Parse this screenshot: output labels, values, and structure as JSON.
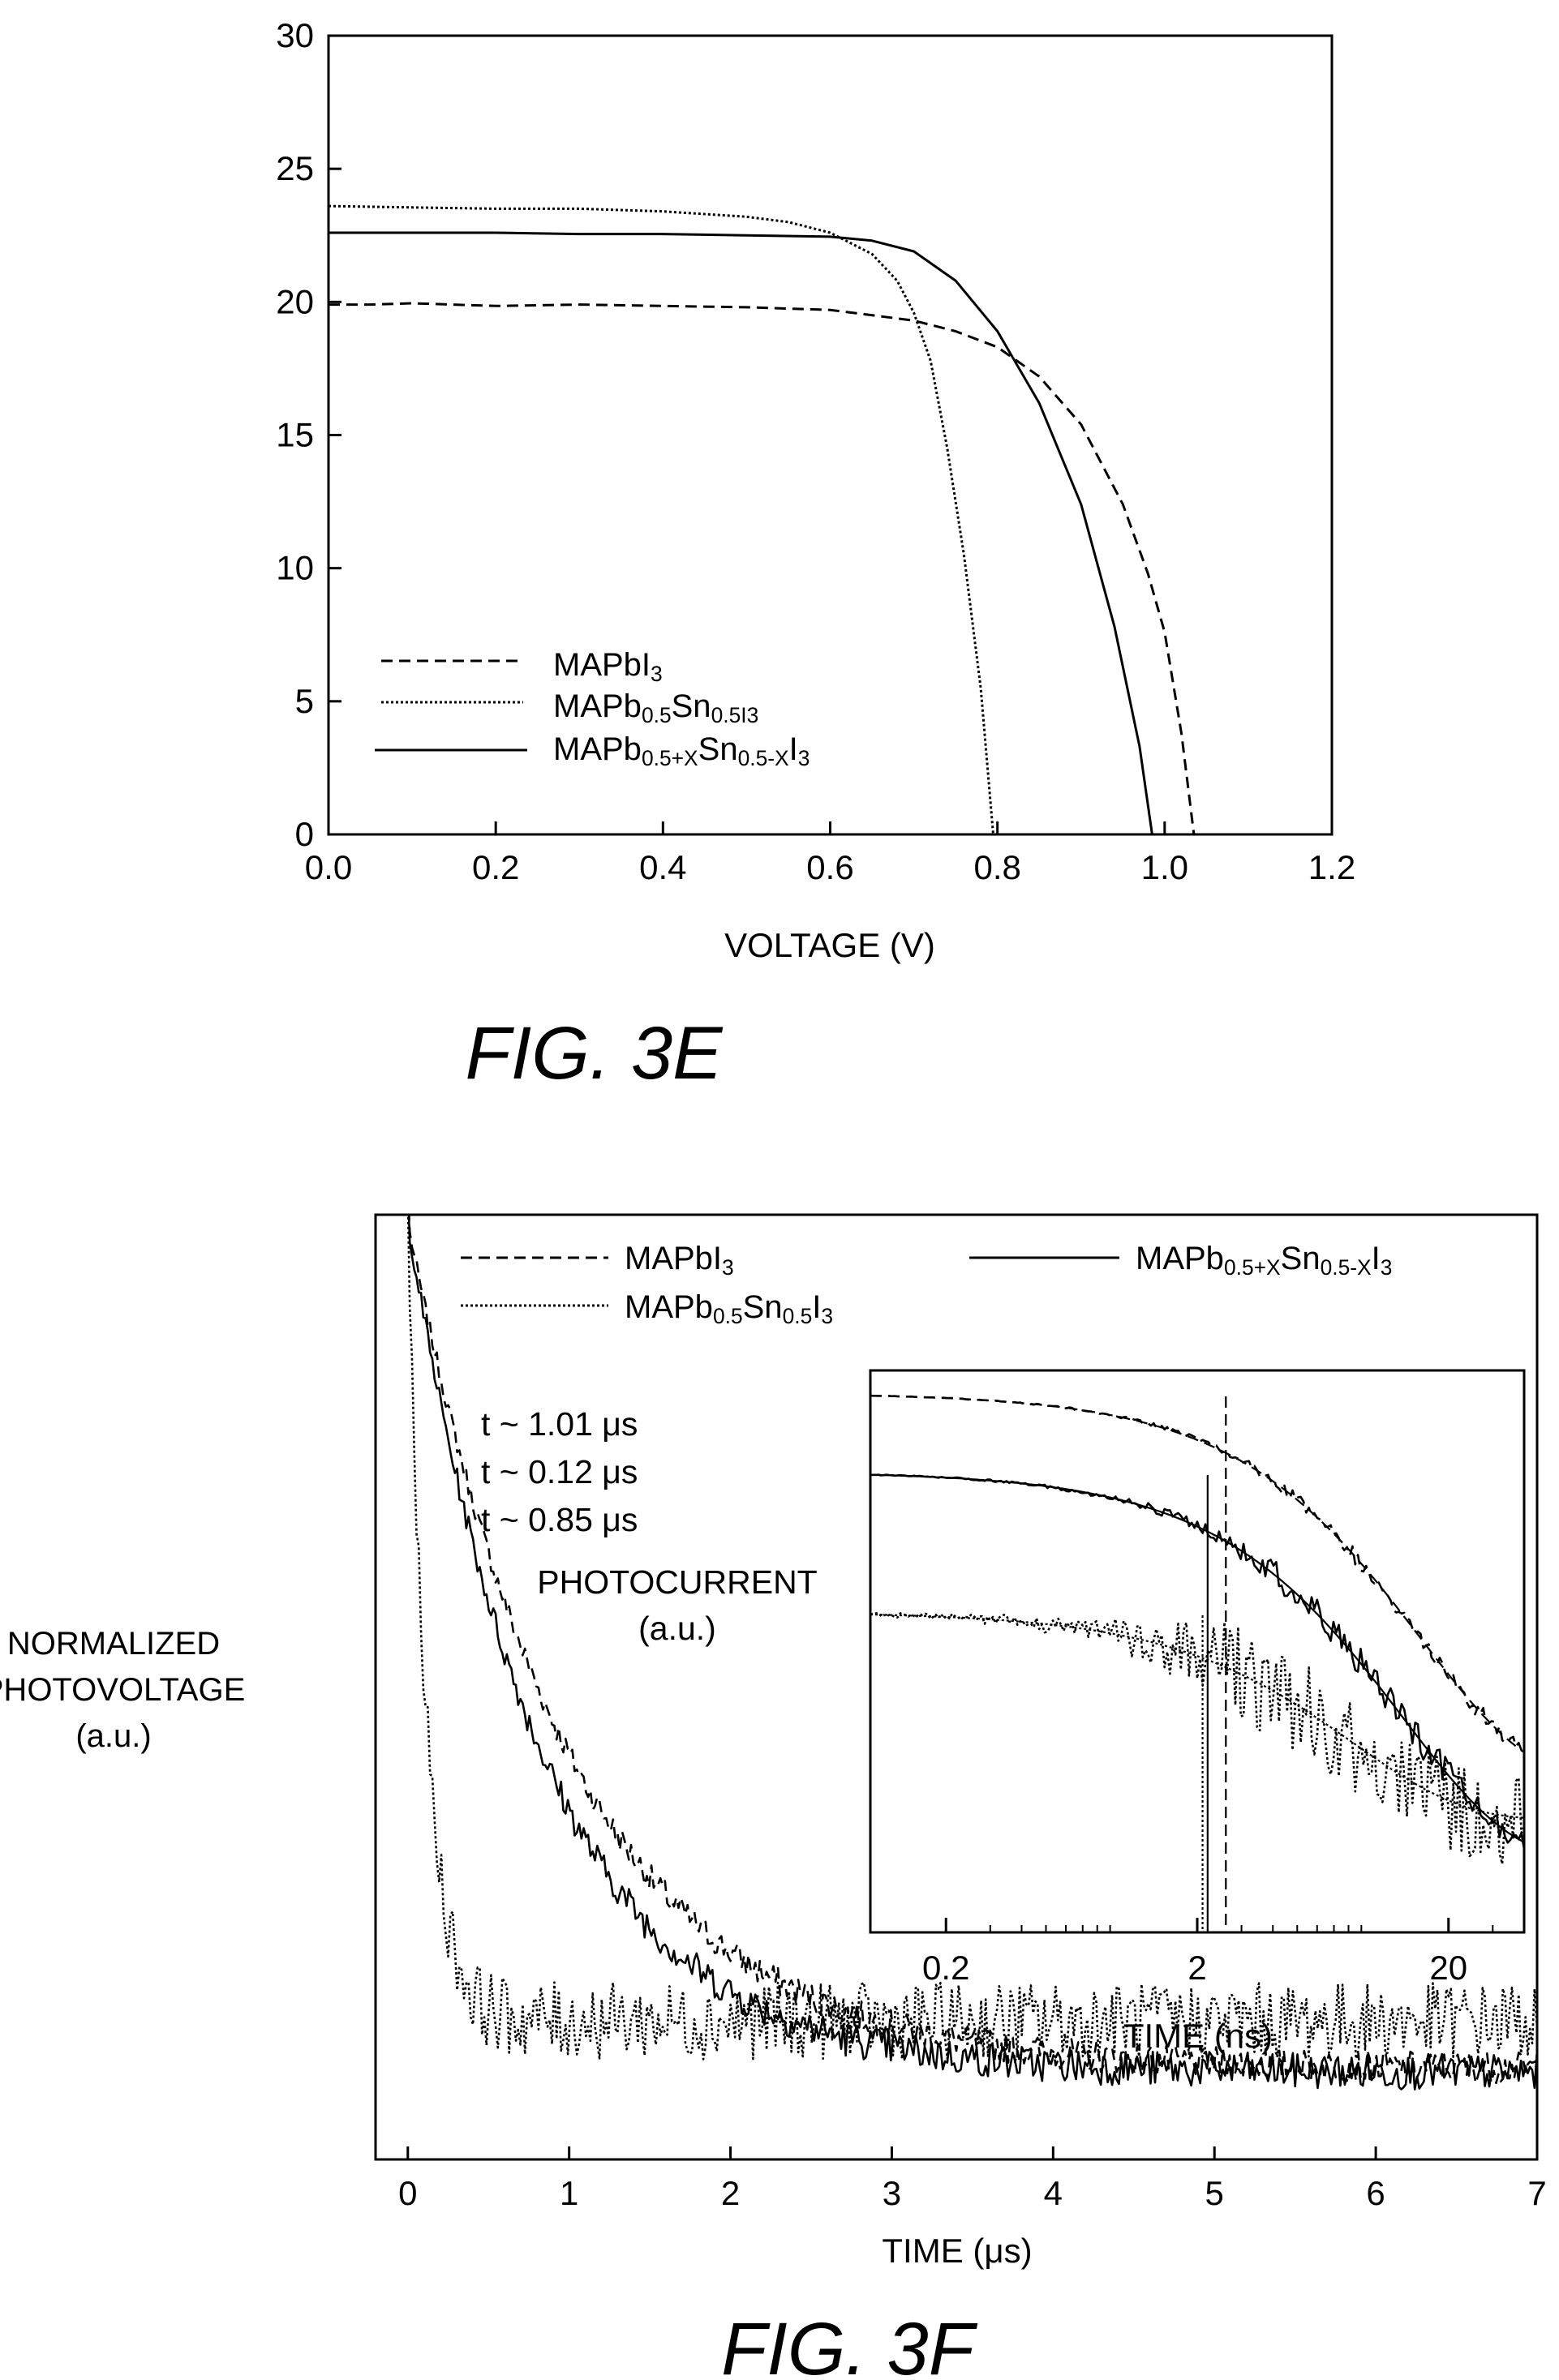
{
  "figures": {
    "fig3e": {
      "caption": "FIG. 3E",
      "xlabel": "VOLTAGE (V)",
      "ylabel": "",
      "legend": [
        {
          "base": "MAPbI",
          "parts": [
            {
              "t": "MAPbI",
              "s": ""
            },
            {
              "t": "3",
              "s": "sub"
            }
          ],
          "dash": "dashed"
        },
        {
          "base": "MAPb0.5Sn0.5I3",
          "parts": [
            {
              "t": "MAPb",
              "s": ""
            },
            {
              "t": "0.5",
              "s": "sub"
            },
            {
              "t": "Sn",
              "s": ""
            },
            {
              "t": "0.5I3",
              "s": "sub"
            }
          ],
          "dash": "dotted"
        },
        {
          "base": "MAPb0.5+XSn0.5-XI3",
          "parts": [
            {
              "t": "MAPb",
              "s": ""
            },
            {
              "t": "0.5+X",
              "s": "sub"
            },
            {
              "t": "Sn",
              "s": ""
            },
            {
              "t": "0.5-X",
              "s": "sub"
            },
            {
              "t": "I",
              "s": ""
            },
            {
              "t": "3",
              "s": "sub"
            }
          ],
          "dash": "solid"
        }
      ]
    },
    "fig3f": {
      "caption": "FIG. 3F",
      "xlabel": "TIME (μs)",
      "ylabel_lines": [
        "NORMALIZED",
        "PHOTOVOLTAGE",
        "(a.u.)"
      ],
      "legend": [
        {
          "base": "MAPbI3",
          "parts": [
            {
              "t": "MAPbI",
              "s": ""
            },
            {
              "t": "3",
              "s": "sub"
            }
          ],
          "dash": "dashed"
        },
        {
          "base": "MAPb0.5+XSn0.5-XI3",
          "parts": [
            {
              "t": "MAPb",
              "s": ""
            },
            {
              "t": "0.5+X",
              "s": "sub"
            },
            {
              "t": "Sn",
              "s": ""
            },
            {
              "t": "0.5-X",
              "s": "sub"
            },
            {
              "t": "I",
              "s": ""
            },
            {
              "t": "3",
              "s": "sub"
            }
          ],
          "dash": "solid"
        },
        {
          "base": "MAPb0.5Sn0.5I3",
          "parts": [
            {
              "t": "MAPb",
              "s": ""
            },
            {
              "t": "0.5",
              "s": "sub"
            },
            {
              "t": "Sn",
              "s": ""
            },
            {
              "t": "0.5",
              "s": "sub"
            },
            {
              "t": "I",
              "s": ""
            },
            {
              "t": "3",
              "s": "sub"
            }
          ],
          "dash": "dotted"
        }
      ],
      "annotations": [
        "t ~ 1.01 μs",
        "t ~ 0.12 μs",
        "t ~ 0.85 μs"
      ],
      "inset_label_lines": [
        "PHOTOCURRENT",
        "(a.u.)"
      ],
      "inset_xlabel": "TIME (ns)"
    }
  },
  "chart_data": [
    {
      "id": "fig3e",
      "type": "line",
      "xlim": [
        0.0,
        1.2
      ],
      "ylim": [
        0,
        30
      ],
      "x_ticks": [
        "0.0",
        "0.2",
        "0.4",
        "0.6",
        "0.8",
        "1.0",
        "1.2"
      ],
      "y_ticks": [
        "0",
        "5",
        "10",
        "15",
        "20",
        "25",
        "30"
      ],
      "series": [
        {
          "name": "MAPbI3",
          "dash": "dashed",
          "points": [
            [
              0.0,
              19.9
            ],
            [
              0.05,
              19.9
            ],
            [
              0.1,
              19.95
            ],
            [
              0.2,
              19.85
            ],
            [
              0.3,
              19.9
            ],
            [
              0.4,
              19.85
            ],
            [
              0.5,
              19.8
            ],
            [
              0.6,
              19.7
            ],
            [
              0.7,
              19.3
            ],
            [
              0.75,
              18.9
            ],
            [
              0.8,
              18.3
            ],
            [
              0.85,
              17.2
            ],
            [
              0.9,
              15.4
            ],
            [
              0.95,
              12.4
            ],
            [
              0.98,
              9.8
            ],
            [
              1.0,
              7.6
            ],
            [
              1.02,
              3.8
            ],
            [
              1.035,
              0
            ]
          ]
        },
        {
          "name": "MAPb0.5Sn0.5I3",
          "dash": "dotted",
          "points": [
            [
              0.0,
              23.6
            ],
            [
              0.1,
              23.55
            ],
            [
              0.2,
              23.5
            ],
            [
              0.3,
              23.5
            ],
            [
              0.4,
              23.4
            ],
            [
              0.5,
              23.2
            ],
            [
              0.55,
              23.0
            ],
            [
              0.6,
              22.6
            ],
            [
              0.65,
              21.8
            ],
            [
              0.68,
              20.8
            ],
            [
              0.7,
              19.6
            ],
            [
              0.72,
              17.8
            ],
            [
              0.74,
              14.5
            ],
            [
              0.76,
              10.5
            ],
            [
              0.78,
              5.5
            ],
            [
              0.795,
              0
            ]
          ]
        },
        {
          "name": "MAPb0.5+XSn0.5-XI3",
          "dash": "solid",
          "points": [
            [
              0.0,
              22.6
            ],
            [
              0.1,
              22.6
            ],
            [
              0.2,
              22.6
            ],
            [
              0.3,
              22.55
            ],
            [
              0.4,
              22.55
            ],
            [
              0.5,
              22.5
            ],
            [
              0.6,
              22.45
            ],
            [
              0.65,
              22.3
            ],
            [
              0.7,
              21.9
            ],
            [
              0.75,
              20.8
            ],
            [
              0.8,
              18.9
            ],
            [
              0.85,
              16.2
            ],
            [
              0.9,
              12.4
            ],
            [
              0.94,
              7.8
            ],
            [
              0.97,
              3.3
            ],
            [
              0.985,
              0
            ]
          ]
        }
      ]
    },
    {
      "id": "fig3f",
      "type": "line",
      "xlim": [
        -0.2,
        7.0
      ],
      "x_ticks": [
        "0",
        "1",
        "2",
        "3",
        "4",
        "5",
        "6",
        "7"
      ],
      "y_range_normalized": [
        0,
        1
      ],
      "series": [
        {
          "name": "MAPbI3",
          "dash": "dashed",
          "tau_us": 1.01
        },
        {
          "name": "MAPb0.5+XSn0.5-XI3",
          "dash": "solid",
          "tau_us": 0.85
        },
        {
          "name": "MAPb0.5Sn0.5I3",
          "dash": "dotted",
          "tau_us": 0.12
        }
      ],
      "inset": {
        "type": "line",
        "x_scale": "log",
        "xlim_ns": [
          0.1,
          40
        ],
        "x_ticks": [
          "0.2",
          "2",
          "20"
        ]
      }
    }
  ]
}
